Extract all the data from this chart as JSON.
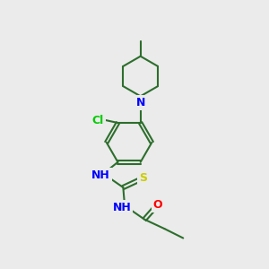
{
  "background_color": "#ebebeb",
  "bond_color": "#2d6e2d",
  "atom_colors": {
    "N": "#0000ff",
    "Cl": "#00cc00",
    "S": "#cccc00",
    "O": "#ff0000",
    "C": "#2d6e2d",
    "H": "#555555"
  },
  "figsize": [
    3.0,
    3.0
  ],
  "dpi": 100,
  "lw": 1.5,
  "fontsize": 9
}
